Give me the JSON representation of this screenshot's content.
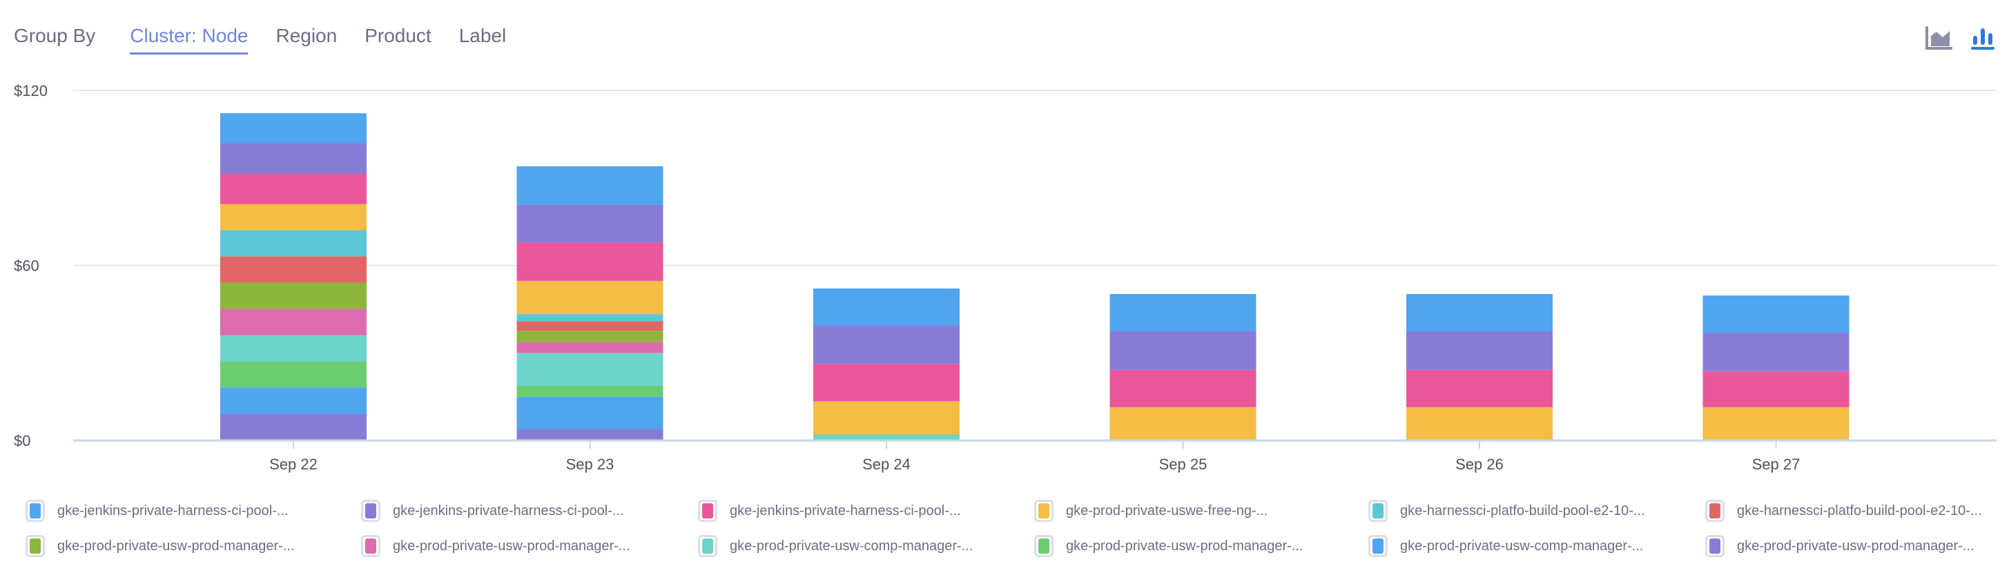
{
  "header": {
    "group_by_label": "Group By",
    "tabs": [
      {
        "label": "Cluster: Node",
        "active": true
      },
      {
        "label": "Region",
        "active": false
      },
      {
        "label": "Product",
        "active": false
      },
      {
        "label": "Label",
        "active": false
      }
    ],
    "chart_type_icons": [
      {
        "name": "area-chart-icon",
        "active": false,
        "color": "#8e8fa6"
      },
      {
        "name": "bar-chart-icon",
        "active": true,
        "color": "#3079d6"
      }
    ]
  },
  "chart_data": {
    "type": "bar",
    "stacked": true,
    "categories": [
      "Sep 22",
      "Sep 23",
      "Sep 24",
      "Sep 25",
      "Sep 26",
      "Sep 27"
    ],
    "y_ticks": [
      "$0",
      "$60",
      "$120"
    ],
    "ylim": [
      0,
      120
    ],
    "grid": true,
    "legend_position": "bottom",
    "series": [
      {
        "name": "gke-jenkins-private-harness-ci-pool-...",
        "color": "#4fa5ef",
        "values": [
          10.3,
          13.2,
          12.7,
          12.8,
          12.8,
          12.8
        ]
      },
      {
        "name": "gke-jenkins-private-harness-ci-pool-...",
        "color": "#877dd7",
        "values": [
          10.4,
          12.9,
          13.2,
          13.2,
          13.2,
          13.2
        ]
      },
      {
        "name": "gke-jenkins-private-harness-ci-pool-...",
        "color": "#ea579b",
        "values": [
          10.5,
          13.2,
          12.8,
          12.8,
          12.8,
          12.3
        ]
      },
      {
        "name": "gke-prod-private-uswe-free-ng-...",
        "color": "#f5bd43",
        "values": [
          8.9,
          11.4,
          11.4,
          11.4,
          11.4,
          11.4
        ]
      },
      {
        "name": "gke-harnessci-platfo-build-pool-e2-10-...",
        "color": "#5bc6d4",
        "values": [
          9.0,
          2.4,
          0,
          0,
          0,
          0
        ]
      },
      {
        "name": "gke-harnessci-platfo-build-pool-e2-10-...",
        "color": "#e16767",
        "values": [
          9.0,
          3.3,
          0,
          0,
          0,
          0
        ]
      },
      {
        "name": "gke-prod-private-usw-prod-manager-...",
        "color": "#8cb53a",
        "values": [
          9.0,
          3.8,
          0,
          0,
          0,
          0
        ]
      },
      {
        "name": "gke-prod-private-usw-prod-manager-...",
        "color": "#dd6bb0",
        "values": [
          9.0,
          3.8,
          0,
          0,
          0,
          0
        ]
      },
      {
        "name": "gke-prod-private-usw-comp-manager-...",
        "color": "#6dd3cb",
        "values": [
          9.0,
          11.3,
          2.0,
          0,
          0,
          0
        ]
      },
      {
        "name": "gke-prod-private-usw-prod-manager-...",
        "color": "#6bcd72",
        "values": [
          9.0,
          3.8,
          0,
          0,
          0,
          0
        ]
      },
      {
        "name": "gke-prod-private-usw-comp-manager-...",
        "color": "#4fa5ef",
        "values": [
          9.0,
          11.0,
          0,
          0,
          0,
          0
        ]
      },
      {
        "name": "gke-prod-private-usw-prod-manager-...",
        "color": "#877dd7",
        "values": [
          9.1,
          3.9,
          0,
          0,
          0,
          0
        ]
      }
    ]
  }
}
